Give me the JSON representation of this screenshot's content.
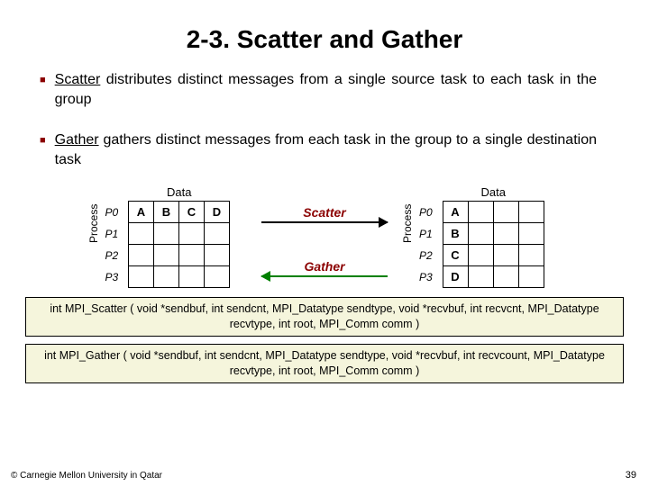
{
  "title": "2-3. Scatter and Gather",
  "bullet1_lead": "Scatter",
  "bullet1_rest": " distributes distinct messages from a single source task to each task in the group",
  "bullet2_lead": "Gather",
  "bullet2_rest": " gathers distinct messages from each task in the group to a single destination task",
  "labels": {
    "data": "Data",
    "process": "Process",
    "scatter": "Scatter",
    "gather": "Gather"
  },
  "rows": [
    "P0",
    "P1",
    "P2",
    "P3"
  ],
  "left_row0": [
    "A",
    "B",
    "C",
    "D"
  ],
  "right_col": [
    "A",
    "B",
    "C",
    "D"
  ],
  "code1": "int MPI_Scatter ( void *sendbuf, int sendcnt, MPI_Datatype sendtype, void *recvbuf, int recvcnt, MPI_Datatype recvtype, int root, MPI_Comm comm )",
  "code2": "int MPI_Gather ( void *sendbuf, int sendcnt, MPI_Datatype sendtype, void *recvbuf, int recvcount, MPI_Datatype recvtype, int root, MPI_Comm comm )",
  "footer": "© Carnegie Mellon University in Qatar",
  "pagenum": "39"
}
